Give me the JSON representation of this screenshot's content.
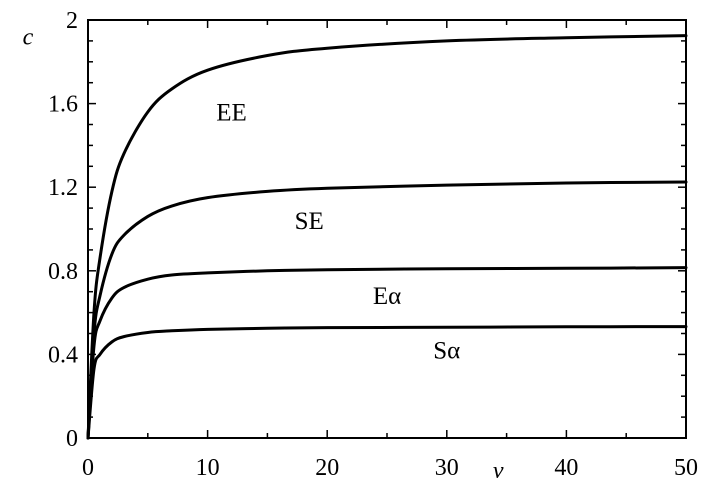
{
  "chart_data": {
    "type": "line",
    "title": "",
    "xlabel": "v",
    "ylabel": "c",
    "xlim": [
      0,
      50
    ],
    "ylim": [
      0,
      2
    ],
    "x_ticks": [
      "0",
      "10",
      "20",
      "30",
      "40",
      "50"
    ],
    "y_ticks": [
      "0",
      "0.4",
      "0.8",
      "1.2",
      "1.6",
      "2"
    ],
    "grid": false,
    "legend": "none",
    "series": [
      {
        "name": "EE",
        "color": "#000000",
        "x": [
          0,
          0.5,
          1,
          2,
          3,
          5,
          7,
          10,
          15,
          20,
          30,
          40,
          50
        ],
        "y": [
          0,
          0.6,
          0.86,
          1.18,
          1.36,
          1.56,
          1.67,
          1.76,
          1.83,
          1.865,
          1.9,
          1.915,
          1.925
        ]
      },
      {
        "name": "SE",
        "color": "#000000",
        "x": [
          0,
          0.5,
          1,
          2,
          3,
          5,
          7,
          10,
          15,
          20,
          30,
          40,
          50
        ],
        "y": [
          0,
          0.5,
          0.68,
          0.88,
          0.97,
          1.06,
          1.11,
          1.15,
          1.18,
          1.195,
          1.21,
          1.22,
          1.225
        ]
      },
      {
        "name": "Eα",
        "color": "#000000",
        "x": [
          0,
          0.5,
          1,
          2,
          3,
          5,
          7,
          10,
          15,
          20,
          30,
          40,
          50
        ],
        "y": [
          0,
          0.44,
          0.56,
          0.67,
          0.72,
          0.76,
          0.78,
          0.79,
          0.8,
          0.805,
          0.81,
          0.812,
          0.815
        ]
      },
      {
        "name": "Sα",
        "color": "#000000",
        "x": [
          0,
          0.5,
          1,
          2,
          3,
          5,
          7,
          10,
          15,
          20,
          30,
          40,
          50
        ],
        "y": [
          0,
          0.33,
          0.4,
          0.46,
          0.485,
          0.505,
          0.513,
          0.52,
          0.525,
          0.528,
          0.53,
          0.532,
          0.533
        ]
      }
    ],
    "annotations": [
      {
        "text": "EE",
        "x": 12,
        "y": 1.52
      },
      {
        "text": "SE",
        "x": 18.5,
        "y": 1.0
      },
      {
        "text": "Eα",
        "x": 25,
        "y": 0.64
      },
      {
        "text": "Sα",
        "x": 30,
        "y": 0.38
      }
    ]
  }
}
